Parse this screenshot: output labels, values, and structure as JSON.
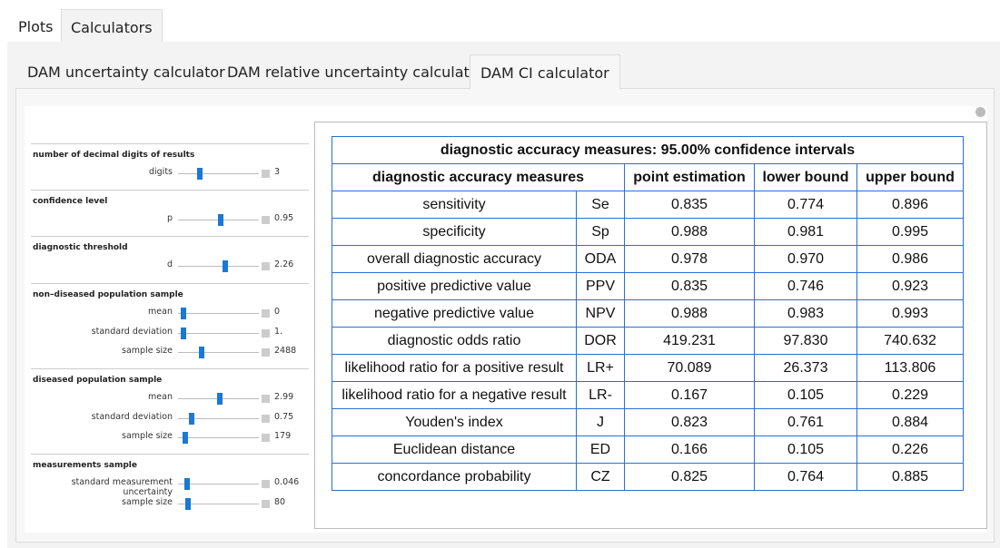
{
  "tabs": [
    "Plots",
    "Calculators"
  ],
  "subtabs": [
    "DAM uncertainty calculator",
    "DAM relative uncertainty calculator",
    "DAM CI calculator"
  ],
  "controls": [
    {
      "title": "number of decimal digits of results",
      "params": [
        {
          "label": "digits",
          "value": "3"
        }
      ]
    },
    {
      "title": "confidence level",
      "params": [
        {
          "label": "p",
          "value": "0.95"
        }
      ]
    },
    {
      "title": "diagnostic threshold",
      "params": [
        {
          "label": "d",
          "value": "2.26"
        }
      ]
    },
    {
      "title": "non–diseased population sample",
      "params": [
        {
          "label": "mean",
          "value": "0"
        },
        {
          "label": "standard deviation",
          "value": "1."
        },
        {
          "label": "sample size",
          "value": "2488"
        }
      ]
    },
    {
      "title": "diseased population sample",
      "params": [
        {
          "label": "mean",
          "value": "2.99"
        },
        {
          "label": "standard deviation",
          "value": "0.75"
        },
        {
          "label": "sample size",
          "value": "179"
        }
      ]
    },
    {
      "title": "measurements sample",
      "params": [
        {
          "label": "standard measurement uncertainty",
          "value": "0.046"
        },
        {
          "label": "sample size",
          "value": "80"
        }
      ]
    }
  ],
  "table": {
    "title": "diagnostic accuracy measures: 95.00% confidence intervals",
    "headers": [
      "diagnostic accuracy measures",
      "point estimation",
      "lower bound",
      "upper bound"
    ],
    "rows": [
      [
        "sensitivity",
        "Se",
        "0.835",
        "0.774",
        "0.896"
      ],
      [
        "specificity",
        "Sp",
        "0.988",
        "0.981",
        "0.995"
      ],
      [
        "overall diagnostic accuracy",
        "ODA",
        "0.978",
        "0.970",
        "0.986"
      ],
      [
        "positive predictive value",
        "PPV",
        "0.835",
        "0.746",
        "0.923"
      ],
      [
        "negative predictive value",
        "NPV",
        "0.988",
        "0.983",
        "0.993"
      ],
      [
        "diagnostic odds ratio",
        "DOR",
        "419.231",
        "97.830",
        "740.632"
      ],
      [
        "likelihood ratio for a positive result",
        "LR+",
        "70.089",
        "26.373",
        "113.806"
      ],
      [
        "likelihood ratio for a negative result",
        "LR-",
        "0.167",
        "0.105",
        "0.229"
      ],
      [
        "Youden's index",
        "J",
        "0.823",
        "0.761",
        "0.884"
      ],
      [
        "Euclidean distance",
        "ED",
        "0.166",
        "0.105",
        "0.226"
      ],
      [
        "concordance probability",
        "CZ",
        "0.825",
        "0.764",
        "0.885"
      ]
    ]
  }
}
